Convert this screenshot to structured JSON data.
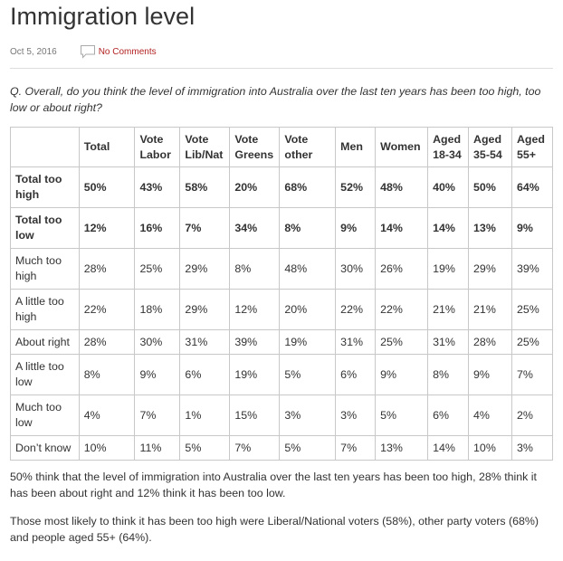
{
  "post": {
    "title": "Immigration level",
    "date": "Oct 5, 2016",
    "comments_label": "No Comments",
    "question": "Q. Overall, do you think the level of immigration into Australia over the last ten years has been too high, too low or about right?"
  },
  "table": {
    "columns": [
      "",
      "Total",
      "Vote Labor",
      "Vote Lib/Nat",
      "Vote Greens",
      "Vote other",
      "Men",
      "Women",
      "Aged 18-34",
      "Aged 35-54",
      "Aged 55+"
    ],
    "rows": [
      {
        "label": "Total too high",
        "values": [
          "50%",
          "43%",
          "58%",
          "20%",
          "68%",
          "52%",
          "48%",
          "40%",
          "50%",
          "64%"
        ]
      },
      {
        "label": "Total too low",
        "values": [
          "12%",
          "16%",
          "7%",
          "34%",
          "8%",
          "9%",
          "14%",
          "14%",
          "13%",
          "9%"
        ]
      },
      {
        "label": "Much too high",
        "values": [
          "28%",
          "25%",
          "29%",
          "8%",
          "48%",
          "30%",
          "26%",
          "19%",
          "29%",
          "39%"
        ]
      },
      {
        "label": "A little too high",
        "values": [
          "22%",
          "18%",
          "29%",
          "12%",
          "20%",
          "22%",
          "22%",
          "21%",
          "21%",
          "25%"
        ]
      },
      {
        "label": "About right",
        "values": [
          "28%",
          "30%",
          "31%",
          "39%",
          "19%",
          "31%",
          "25%",
          "31%",
          "28%",
          "25%"
        ]
      },
      {
        "label": "A little too low",
        "values": [
          "8%",
          "9%",
          "6%",
          "19%",
          "5%",
          "6%",
          "9%",
          "8%",
          "9%",
          "7%"
        ]
      },
      {
        "label": "Much too low",
        "values": [
          "4%",
          "7%",
          "1%",
          "15%",
          "3%",
          "3%",
          "5%",
          "6%",
          "4%",
          "2%"
        ]
      },
      {
        "label": "Don’t know",
        "values": [
          "10%",
          "11%",
          "5%",
          "7%",
          "5%",
          "7%",
          "13%",
          "14%",
          "10%",
          "3%"
        ]
      }
    ]
  },
  "body": {
    "paragraph1": "50% think that the level of immigration into Australia over the last ten years has been too high, 28% think it has been about right and 12% think it has been too low.",
    "paragraph2": "Those most likely to think it has been too high were Liberal/National voters (58%), other party voters (68%) and people aged 55+ (64%)."
  },
  "icons": {
    "comments": "speech-bubble-icon"
  },
  "colors": {
    "link": "#b22222",
    "border": "#c8c8c8"
  }
}
